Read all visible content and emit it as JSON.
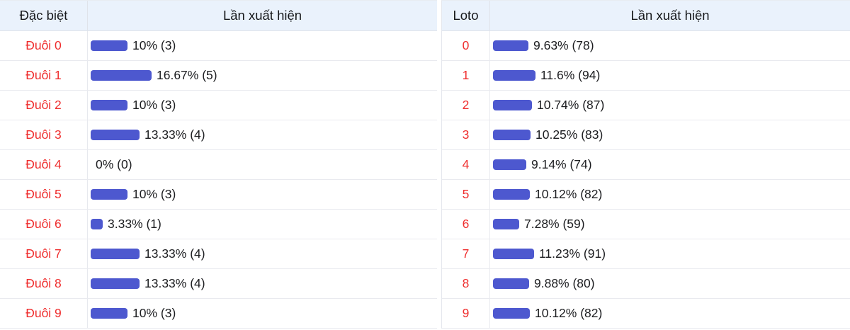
{
  "colors": {
    "bar": "#4d58cf",
    "label_red": "#ef2e2e",
    "header_bg": "#eaf2fc"
  },
  "tables": [
    {
      "col1_header": "Đặc biệt",
      "col2_header": "Lần xuất hiện",
      "rows": [
        {
          "label": "Đuôi 0",
          "pct": 10,
          "count": 3,
          "text": "10% (3)"
        },
        {
          "label": "Đuôi 1",
          "pct": 16.67,
          "count": 5,
          "text": "16.67% (5)"
        },
        {
          "label": "Đuôi 2",
          "pct": 10,
          "count": 3,
          "text": "10% (3)"
        },
        {
          "label": "Đuôi 3",
          "pct": 13.33,
          "count": 4,
          "text": "13.33% (4)"
        },
        {
          "label": "Đuôi 4",
          "pct": 0,
          "count": 0,
          "text": "0% (0)"
        },
        {
          "label": "Đuôi 5",
          "pct": 10,
          "count": 3,
          "text": "10% (3)"
        },
        {
          "label": "Đuôi 6",
          "pct": 3.33,
          "count": 1,
          "text": "3.33% (1)"
        },
        {
          "label": "Đuôi 7",
          "pct": 13.33,
          "count": 4,
          "text": "13.33% (4)"
        },
        {
          "label": "Đuôi 8",
          "pct": 13.33,
          "count": 4,
          "text": "13.33% (4)"
        },
        {
          "label": "Đuôi 9",
          "pct": 10,
          "count": 3,
          "text": "10% (3)"
        }
      ]
    },
    {
      "col1_header": "Loto",
      "col2_header": "Lần xuất hiện",
      "rows": [
        {
          "label": "0",
          "pct": 9.63,
          "count": 78,
          "text": "9.63% (78)"
        },
        {
          "label": "1",
          "pct": 11.6,
          "count": 94,
          "text": "11.6% (94)"
        },
        {
          "label": "2",
          "pct": 10.74,
          "count": 87,
          "text": "10.74% (87)"
        },
        {
          "label": "3",
          "pct": 10.25,
          "count": 83,
          "text": "10.25% (83)"
        },
        {
          "label": "4",
          "pct": 9.14,
          "count": 74,
          "text": "9.14% (74)"
        },
        {
          "label": "5",
          "pct": 10.12,
          "count": 82,
          "text": "10.12% (82)"
        },
        {
          "label": "6",
          "pct": 7.28,
          "count": 59,
          "text": "7.28% (59)"
        },
        {
          "label": "7",
          "pct": 11.23,
          "count": 91,
          "text": "11.23% (91)"
        },
        {
          "label": "8",
          "pct": 9.88,
          "count": 80,
          "text": "9.88% (80)"
        },
        {
          "label": "9",
          "pct": 10.12,
          "count": 82,
          "text": "10.12% (82)"
        }
      ]
    }
  ]
}
